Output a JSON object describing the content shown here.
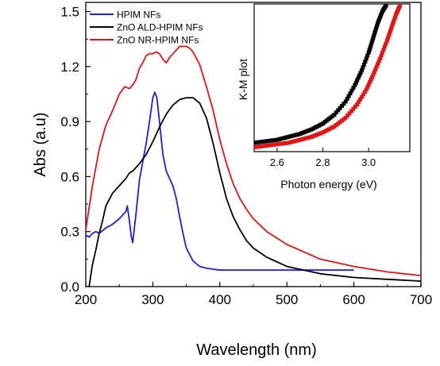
{
  "chart_data": [
    {
      "type": "line",
      "xlabel": "Wavelength (nm)",
      "ylabel": "Abs (a.u)",
      "xlim": [
        200,
        700
      ],
      "ylim": [
        0,
        1.55
      ],
      "xticks": [
        200,
        300,
        400,
        500,
        600,
        700
      ],
      "yticks": [
        0.0,
        0.3,
        0.6,
        0.9,
        1.2,
        1.5
      ],
      "xtick_labels": [
        "200",
        "300",
        "400",
        "500",
        "600",
        "700"
      ],
      "ytick_labels": [
        "0.0",
        "0.3",
        "0.6",
        "0.9",
        "1.2",
        "1.5"
      ],
      "grid": false,
      "legend_position": "top-left",
      "series": [
        {
          "name": "HPIM NFs",
          "color": "#1f1fd6",
          "x": [
            200,
            205,
            210,
            215,
            220,
            230,
            240,
            250,
            255,
            260,
            262,
            265,
            268,
            270,
            275,
            280,
            285,
            290,
            295,
            300,
            303,
            306,
            310,
            315,
            320,
            325,
            330,
            335,
            340,
            345,
            350,
            360,
            370,
            380,
            400,
            450,
            500,
            550,
            600
          ],
          "y": [
            0.28,
            0.27,
            0.29,
            0.3,
            0.29,
            0.32,
            0.34,
            0.37,
            0.39,
            0.41,
            0.44,
            0.36,
            0.27,
            0.24,
            0.4,
            0.58,
            0.68,
            0.78,
            0.9,
            1.03,
            1.06,
            1.03,
            0.9,
            0.72,
            0.63,
            0.59,
            0.55,
            0.48,
            0.38,
            0.29,
            0.21,
            0.14,
            0.11,
            0.1,
            0.09,
            0.09,
            0.09,
            0.09,
            0.09
          ]
        },
        {
          "name": "ZnO ALD-HPIM NFs",
          "color": "#000000",
          "x": [
            205,
            210,
            215,
            220,
            225,
            230,
            240,
            250,
            260,
            265,
            270,
            280,
            290,
            300,
            310,
            320,
            330,
            340,
            350,
            360,
            370,
            380,
            390,
            400,
            410,
            420,
            430,
            440,
            450,
            470,
            500,
            550,
            600,
            650,
            700
          ],
          "y": [
            0.0,
            0.12,
            0.2,
            0.29,
            0.36,
            0.44,
            0.51,
            0.55,
            0.59,
            0.62,
            0.63,
            0.67,
            0.72,
            0.79,
            0.87,
            0.94,
            0.99,
            1.02,
            1.03,
            1.03,
            1.0,
            0.92,
            0.78,
            0.62,
            0.48,
            0.38,
            0.31,
            0.25,
            0.21,
            0.16,
            0.11,
            0.07,
            0.05,
            0.04,
            0.03
          ]
        },
        {
          "name": "ZnO NR-HPIM NFs",
          "color": "#e01616",
          "x": [
            200,
            210,
            220,
            230,
            240,
            250,
            258,
            265,
            270,
            275,
            280,
            285,
            290,
            295,
            300,
            305,
            310,
            315,
            320,
            325,
            330,
            335,
            340,
            345,
            350,
            355,
            360,
            370,
            380,
            390,
            400,
            410,
            420,
            430,
            440,
            450,
            470,
            500,
            550,
            600,
            650,
            700
          ],
          "y": [
            0.31,
            0.55,
            0.75,
            0.88,
            0.96,
            1.05,
            1.09,
            1.08,
            1.1,
            1.13,
            1.19,
            1.22,
            1.26,
            1.27,
            1.27,
            1.28,
            1.27,
            1.24,
            1.22,
            1.25,
            1.27,
            1.29,
            1.31,
            1.31,
            1.31,
            1.3,
            1.28,
            1.21,
            1.09,
            0.96,
            0.8,
            0.67,
            0.56,
            0.48,
            0.42,
            0.37,
            0.3,
            0.23,
            0.15,
            0.11,
            0.08,
            0.06
          ]
        }
      ]
    },
    {
      "type": "scatter",
      "inset": true,
      "title": "K-M plot",
      "xlabel": "Photon energy (eV)",
      "ylabel": "",
      "xlim": [
        2.5,
        3.18
      ],
      "ylim": [
        0,
        1
      ],
      "xticks": [
        2.6,
        2.8,
        3.0
      ],
      "xtick_labels": [
        "2.6",
        "2.8",
        "3.0"
      ],
      "grid": false,
      "series": [
        {
          "name": "",
          "color": "#000000",
          "x": [
            2.5,
            2.55,
            2.6,
            2.65,
            2.7,
            2.75,
            2.8,
            2.85,
            2.9,
            2.94,
            2.97,
            3.0,
            3.02,
            3.04,
            3.06,
            3.08
          ],
          "y": [
            0.06,
            0.07,
            0.08,
            0.1,
            0.12,
            0.15,
            0.19,
            0.25,
            0.34,
            0.45,
            0.55,
            0.67,
            0.77,
            0.87,
            0.95,
            1.0
          ]
        },
        {
          "name": "",
          "color": "#e01616",
          "x": [
            2.5,
            2.55,
            2.6,
            2.65,
            2.7,
            2.75,
            2.8,
            2.85,
            2.9,
            2.95,
            2.99,
            3.02,
            3.05,
            3.08,
            3.1,
            3.12,
            3.14
          ],
          "y": [
            0.03,
            0.04,
            0.05,
            0.06,
            0.08,
            0.1,
            0.13,
            0.17,
            0.23,
            0.32,
            0.42,
            0.52,
            0.63,
            0.75,
            0.84,
            0.93,
            1.0
          ]
        }
      ]
    }
  ]
}
